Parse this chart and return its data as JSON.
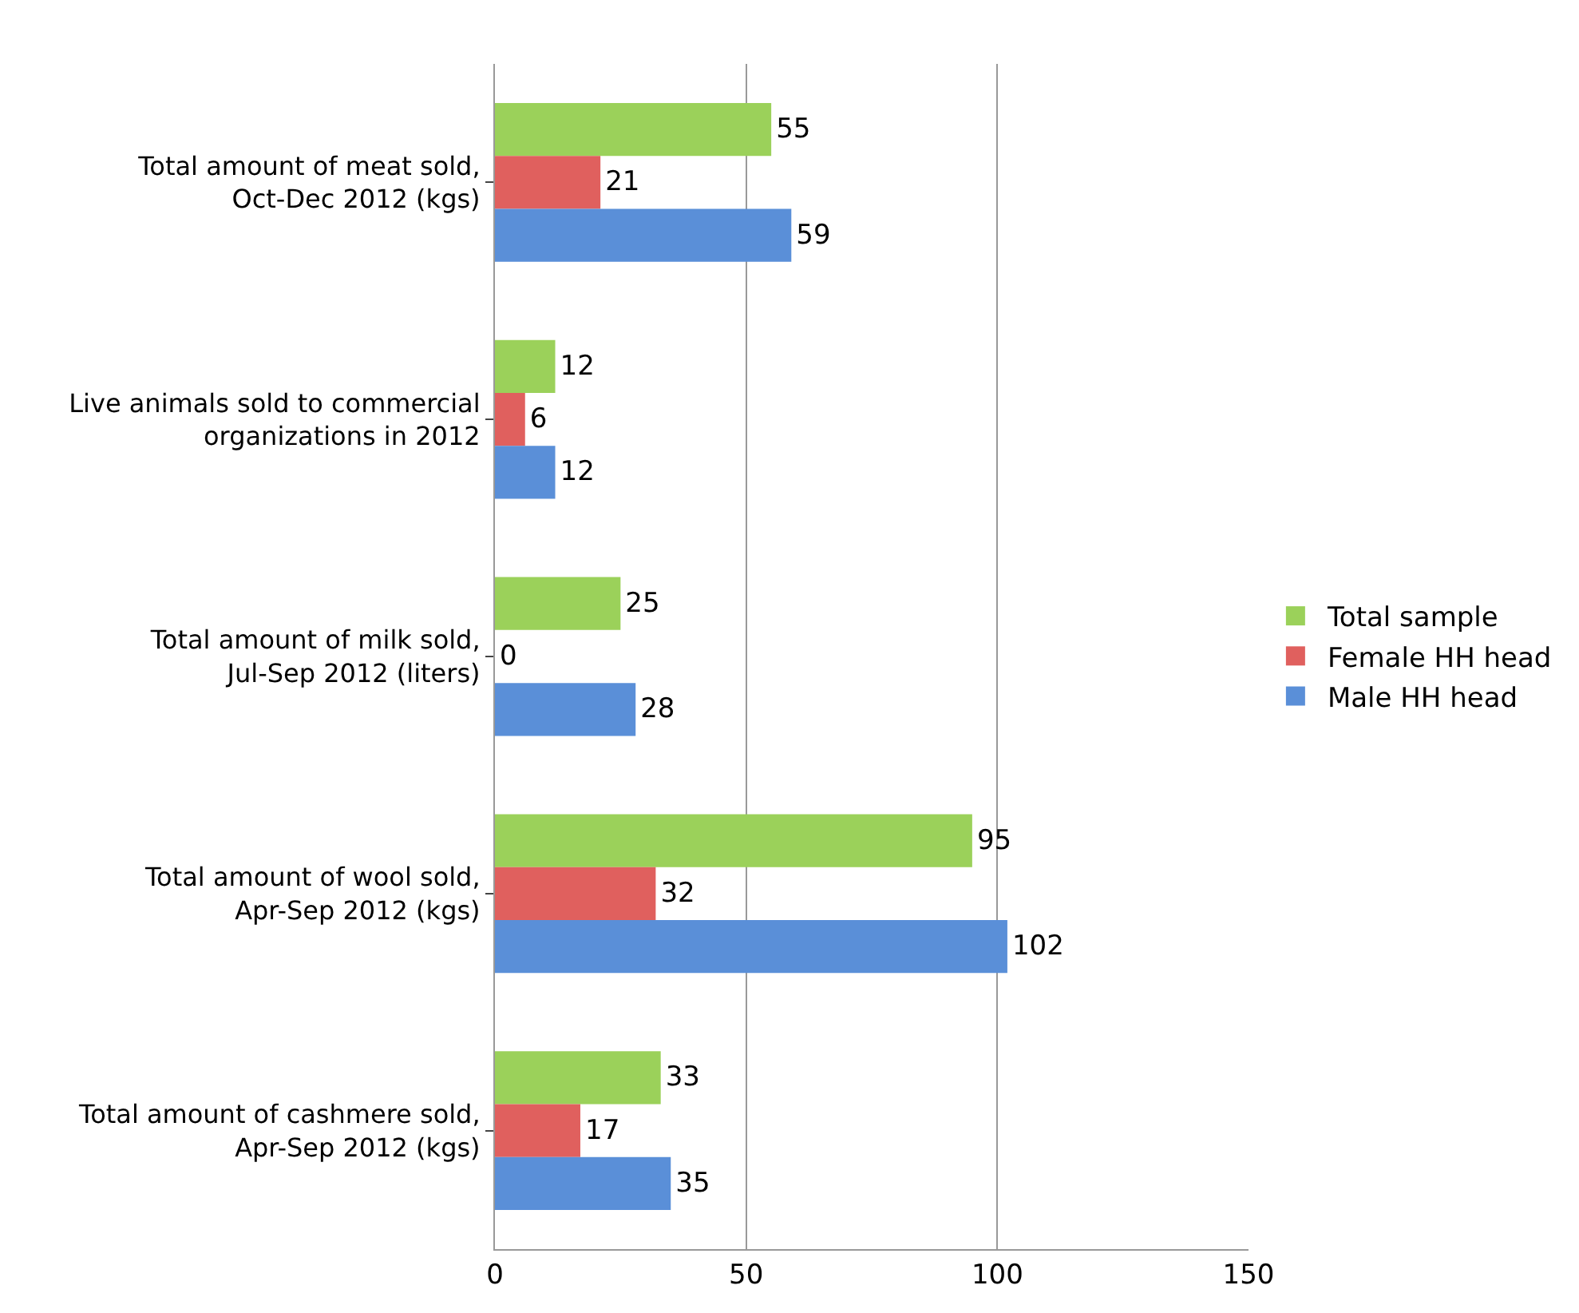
{
  "chart_data": {
    "type": "bar",
    "orientation": "horizontal",
    "categories": [
      "Total amount of meat sold, Oct-Dec 2012 (kgs)",
      "Live animals sold to commercial organizations in 2012",
      "Total amount of milk sold, Jul-Sep 2012 (liters)",
      "Total amount of wool sold, Apr-Sep 2012 (kgs)",
      "Total amount of cashmere sold, Apr-Sep 2012 (kgs)"
    ],
    "series": [
      {
        "name": "Total sample",
        "color": "#9bd15a",
        "values": [
          55,
          12,
          25,
          95,
          33
        ]
      },
      {
        "name": "Female HH head",
        "color": "#e0605e",
        "values": [
          21,
          6,
          0,
          32,
          17
        ]
      },
      {
        "name": "Male HH head",
        "color": "#5a8fd8",
        "values": [
          59,
          12,
          28,
          102,
          35
        ]
      }
    ],
    "xlim": [
      0,
      150
    ],
    "xticks": [
      0,
      50,
      100,
      150
    ],
    "grid": "x",
    "legend": "right",
    "data_labels": true
  }
}
